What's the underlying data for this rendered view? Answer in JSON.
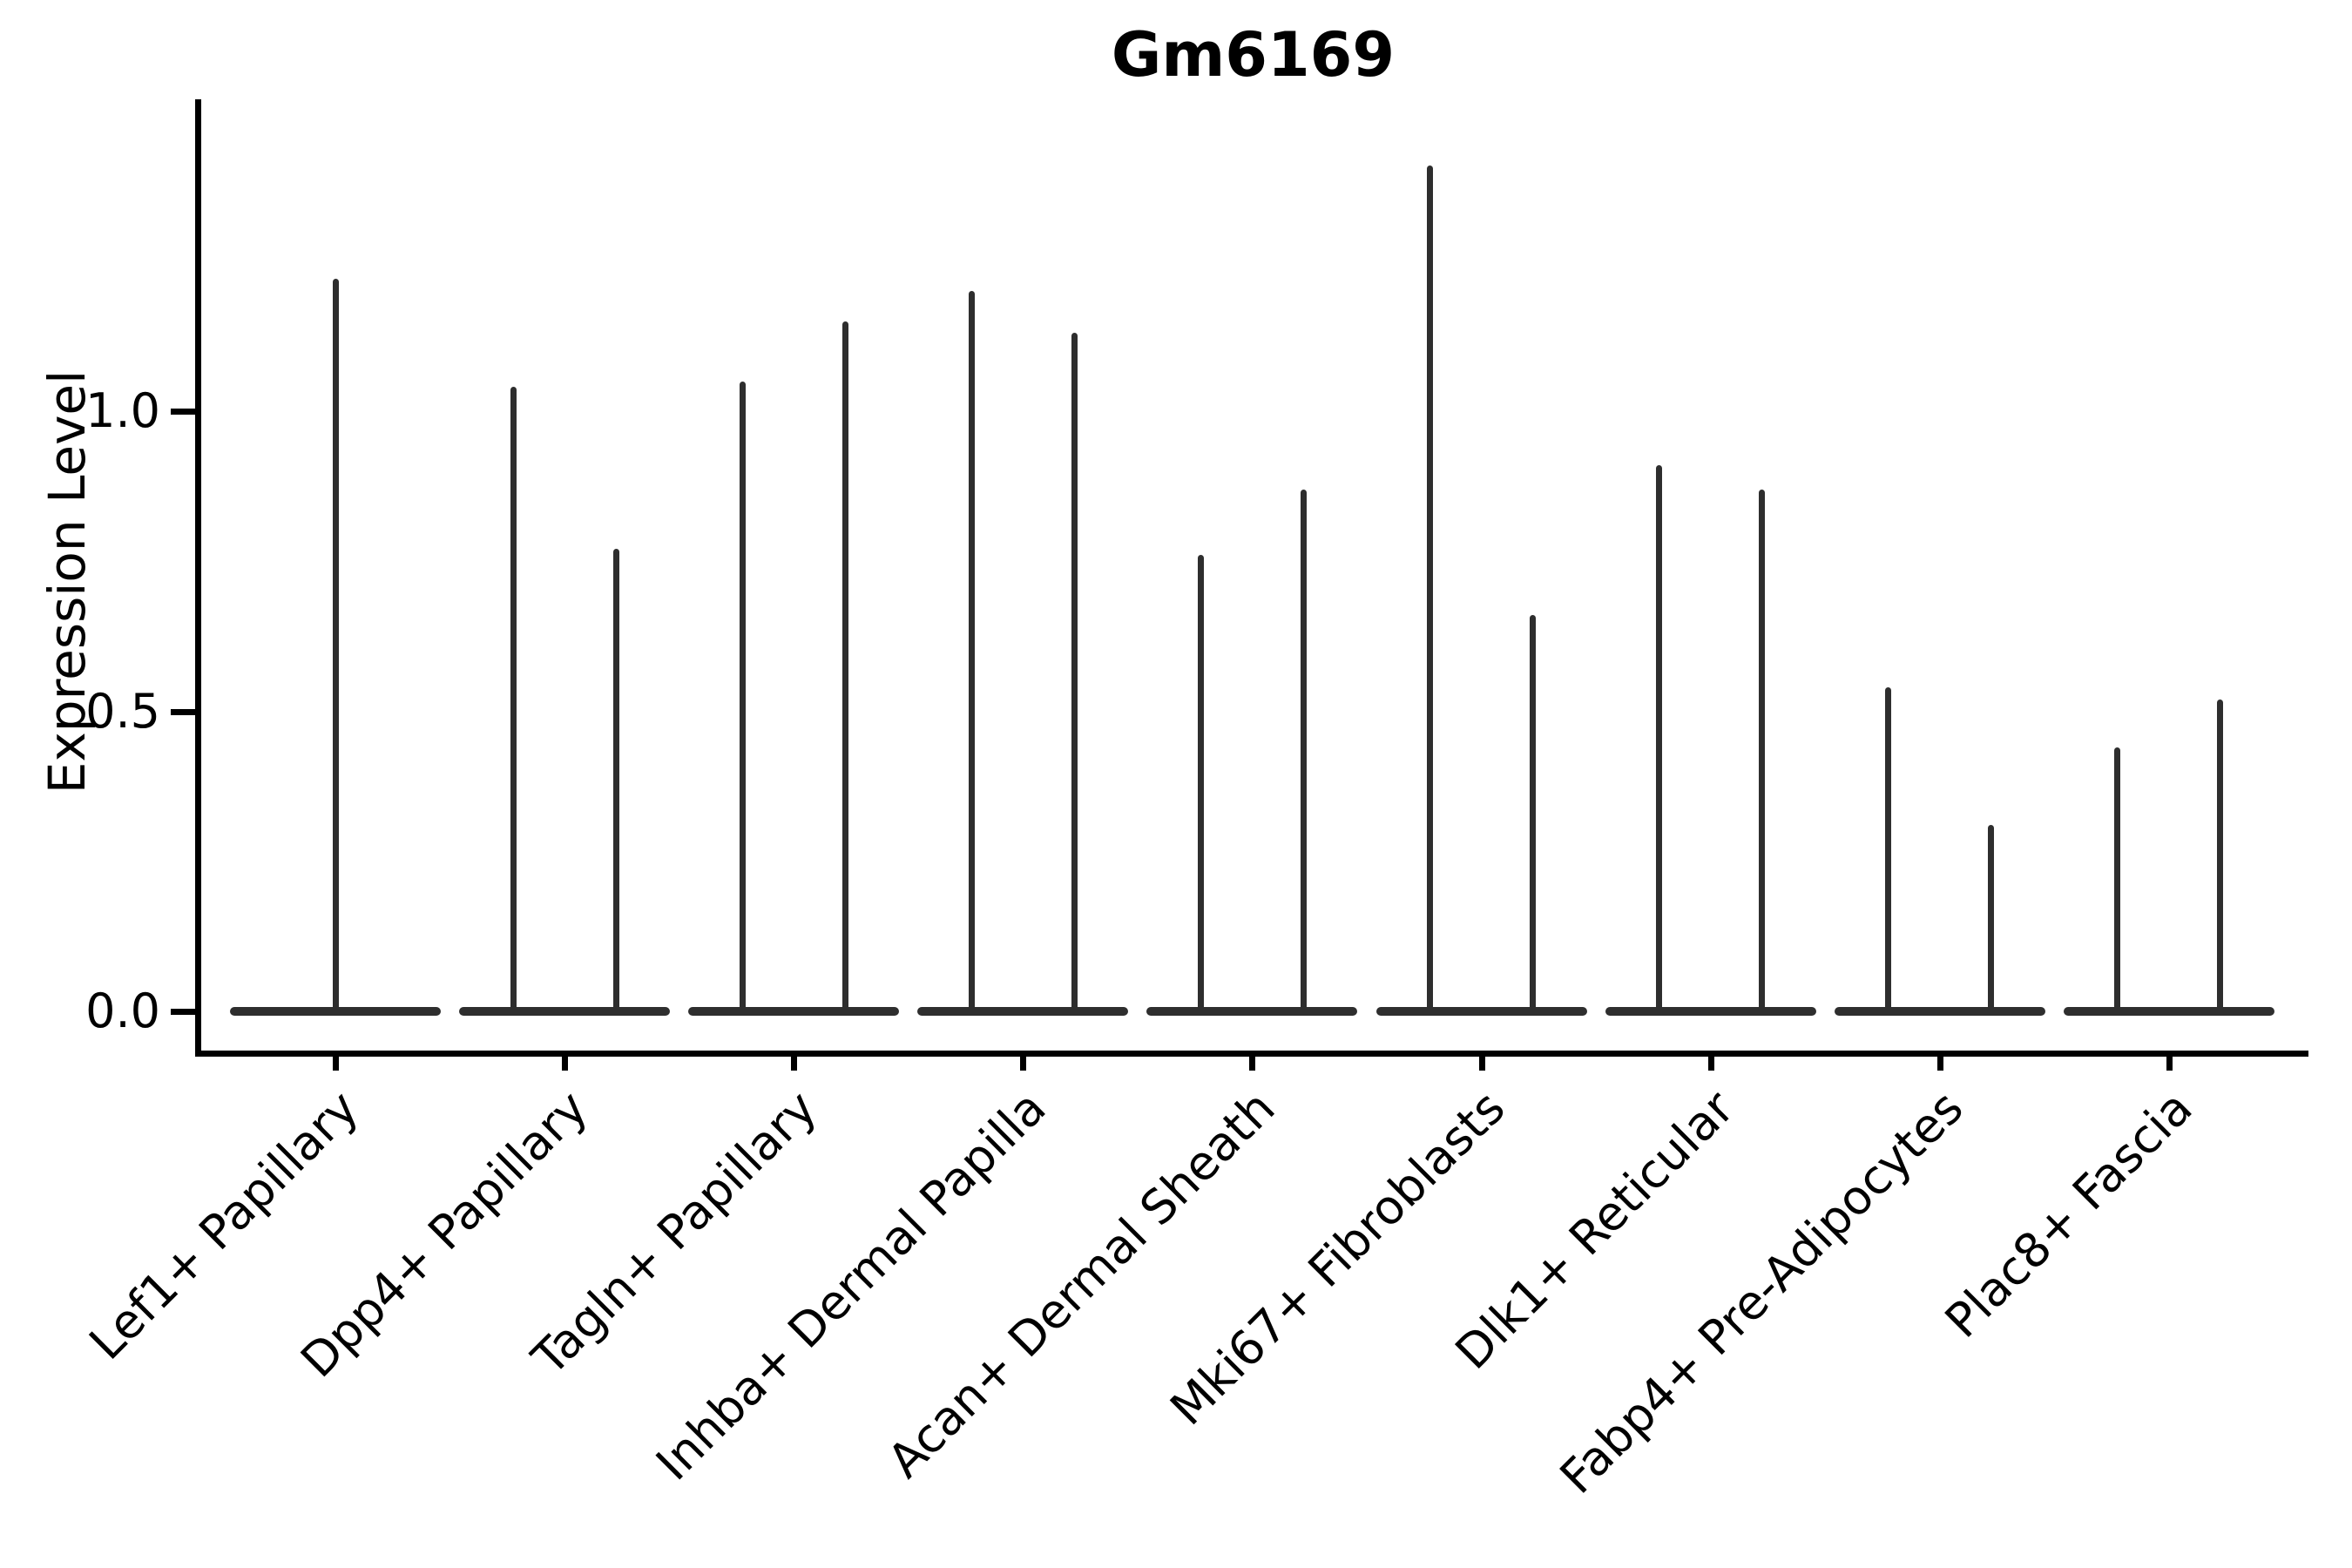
{
  "title": "Gm6169",
  "chart_data": {
    "type": "violin",
    "title": "Gm6169",
    "xlabel": "",
    "ylabel": "Expression Level",
    "ylim": [
      0,
      1.51
    ],
    "yticks": [
      0.0,
      0.5,
      1.0
    ],
    "ytick_labels": [
      "0.0",
      "0.5",
      "1.0"
    ],
    "grid": false,
    "legend_position": "none",
    "violin_color": "#2e2e2e",
    "axis_color": "#000000",
    "background_color": "#ffffff",
    "description": "Needle-thin violins: expression mass concentrated at 0 (flat base) with a narrow spike up to the maximum expression value per violin; categories 2-9 each contain two side-by-side violins, category 1 contains one full-width violin",
    "categories": [
      {
        "label": "Lef1+ Papillary",
        "max_expression": [
          1.22
        ]
      },
      {
        "label": "Dpp4+ Papillary",
        "max_expression": [
          1.04,
          0.77
        ]
      },
      {
        "label": "Tagln+ Papillary",
        "max_expression": [
          1.05,
          1.15
        ]
      },
      {
        "label": "Inhba+ Dermal Papilla",
        "max_expression": [
          1.2,
          1.13
        ]
      },
      {
        "label": "Acan+ Dermal Sheath",
        "max_expression": [
          0.76,
          0.87
        ]
      },
      {
        "label": "Mki67+ Fibroblasts",
        "max_expression": [
          1.41,
          0.66
        ]
      },
      {
        "label": "Dlk1+ Reticular",
        "max_expression": [
          0.91,
          0.87
        ]
      },
      {
        "label": "Fabp4+ Pre-Adipocytes",
        "max_expression": [
          0.54,
          0.31
        ]
      },
      {
        "label": "Plac8+ Fascia",
        "max_expression": [
          0.44,
          0.52
        ]
      }
    ]
  }
}
